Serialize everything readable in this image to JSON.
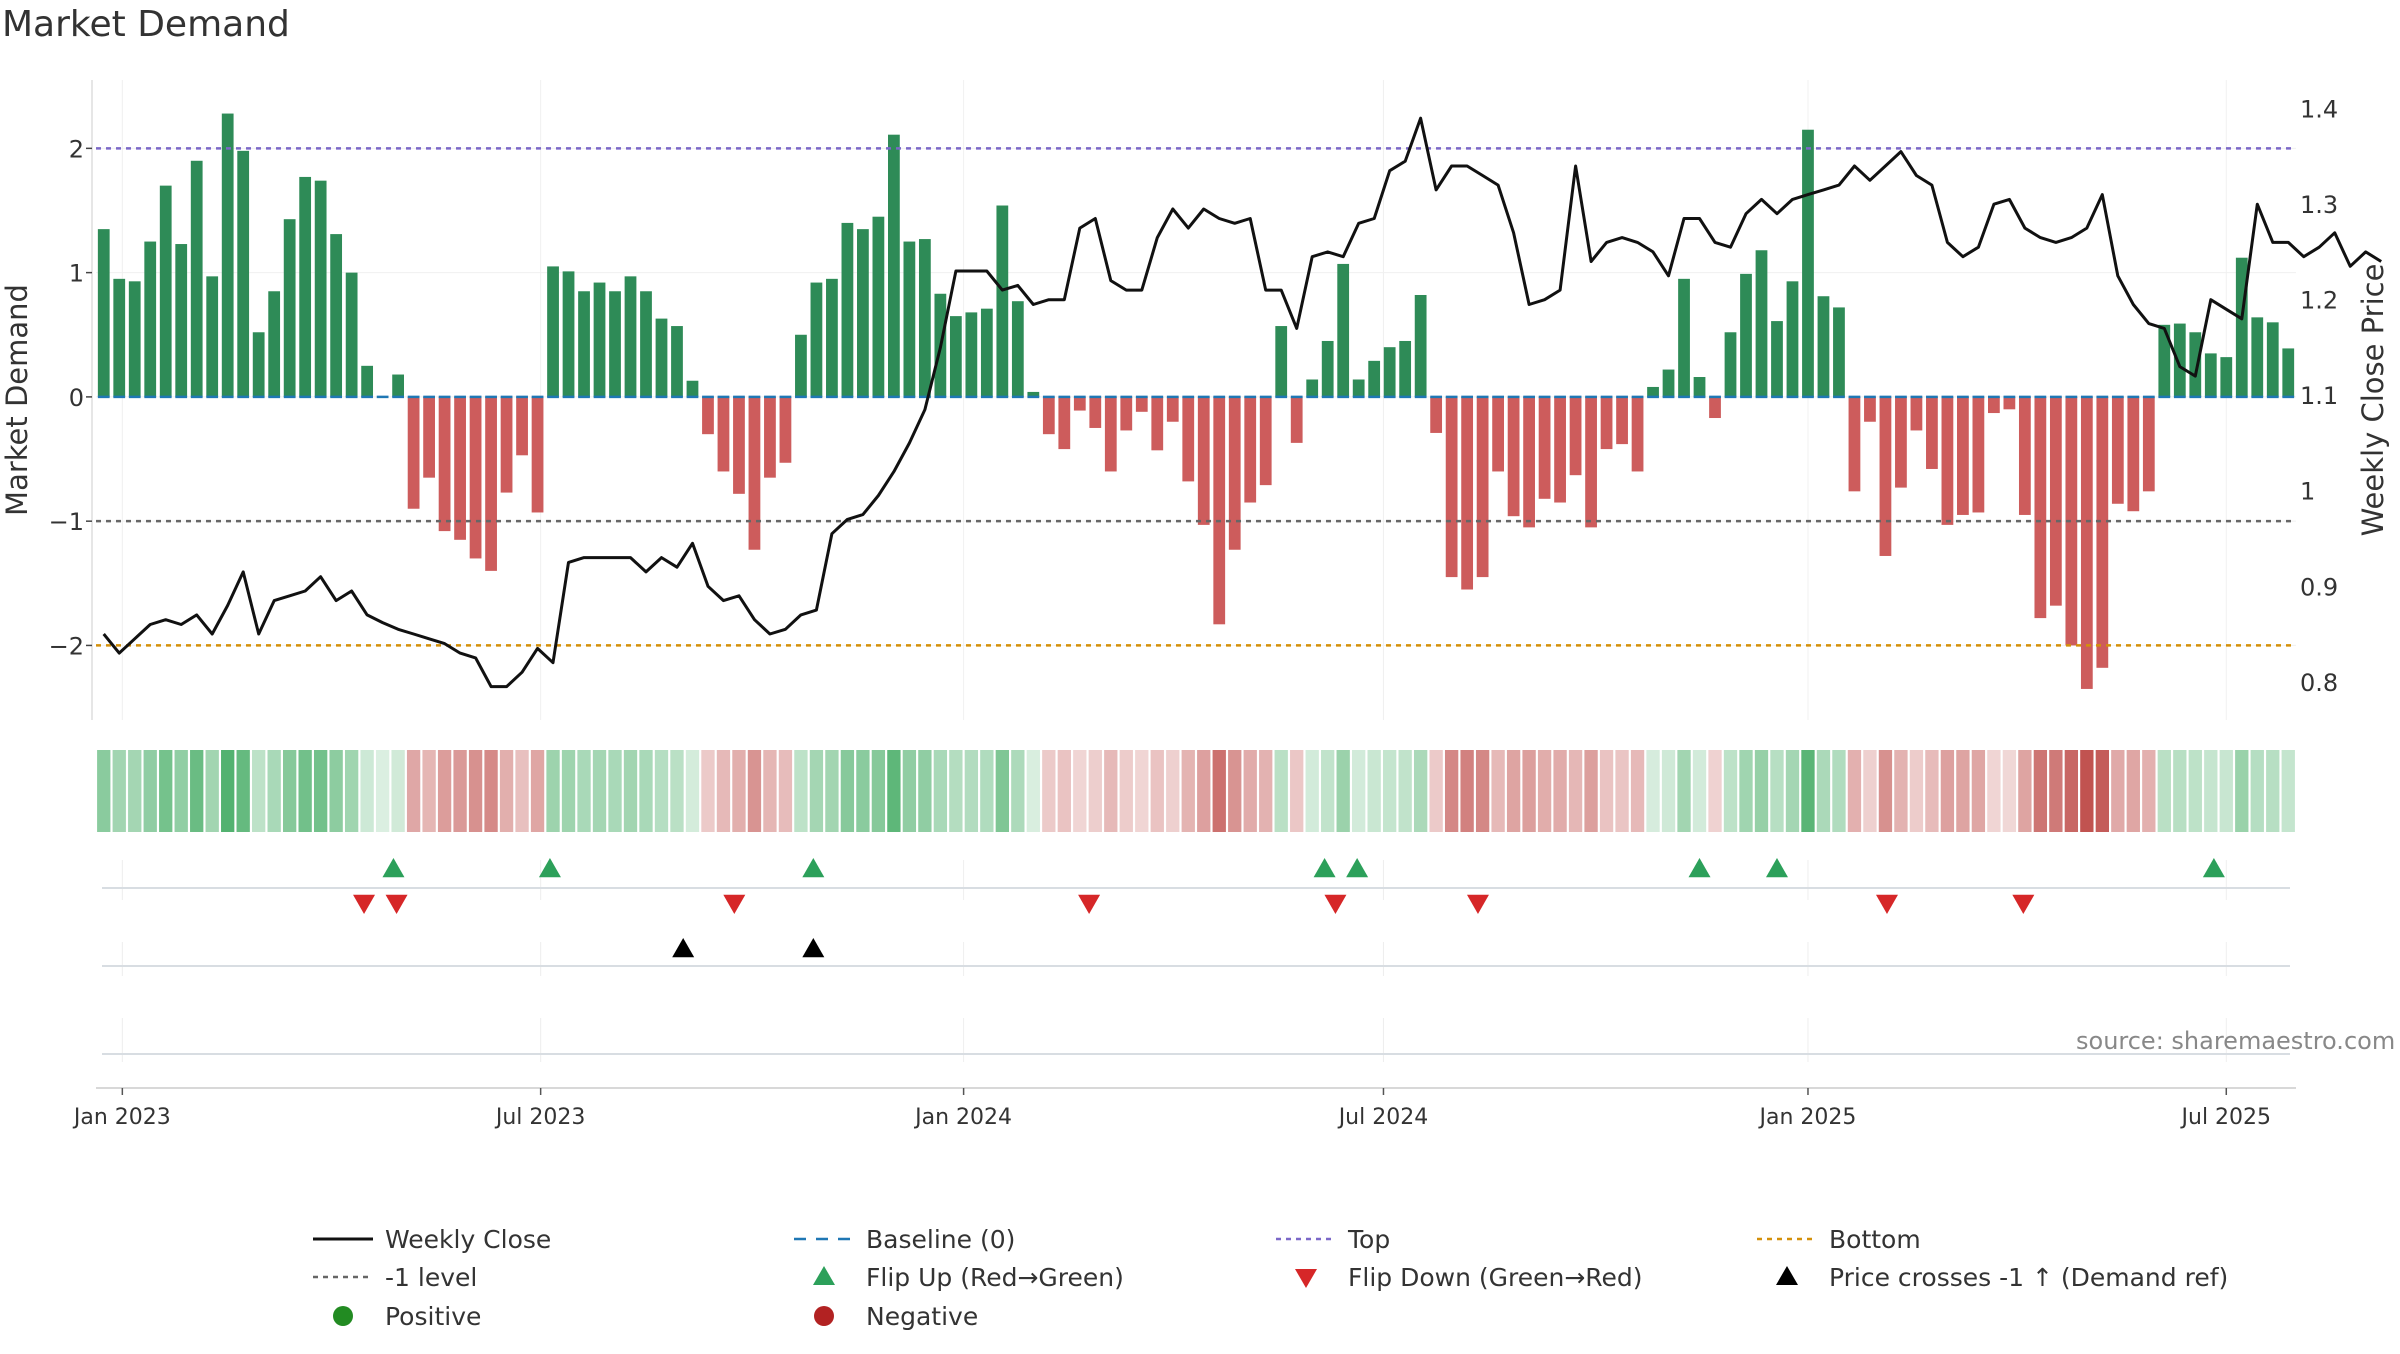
{
  "chart_data": {
    "type": "bar",
    "title": "Market Demand",
    "ylabel_left": "Market Demand",
    "ylabel_right": "Weekly Close Price",
    "ylim_left": [
      -2.6,
      2.55
    ],
    "ylim_right": [
      0.76,
      1.43
    ],
    "yticks_left": [
      2,
      1,
      0,
      -1,
      -2
    ],
    "ytick_labels_left": [
      "2",
      "1",
      "0",
      "−1",
      "−2"
    ],
    "yticks_right": [
      1.4,
      1.3,
      1.2,
      1.1,
      1.0,
      0.9,
      0.8
    ],
    "ytick_labels_right": [
      "1.4",
      "1.3",
      "1.2",
      "1.1",
      "1",
      "0.9",
      "0.8"
    ],
    "xtick_labels": [
      "Jan 2023",
      "Jul 2023",
      "Jan 2024",
      "Jul 2024",
      "Jan 2025",
      "Jul 2025"
    ],
    "xtick_index": [
      1.2,
      28.2,
      55.5,
      82.6,
      110.0,
      137.0
    ],
    "reference_lines": [
      {
        "name": "Top",
        "value": 2,
        "color": "#7b68c8"
      },
      {
        "name": "-1 level",
        "value": -1,
        "color": "#666666"
      },
      {
        "name": "Bottom",
        "value": -2,
        "color": "#d4900a"
      }
    ],
    "source_text": "source: sharemaestro.com",
    "demand": [
      1.35,
      0.95,
      0.93,
      1.25,
      1.7,
      1.23,
      1.9,
      0.97,
      2.28,
      1.98,
      0.52,
      0.85,
      1.43,
      1.77,
      1.74,
      1.31,
      1.0,
      0.25,
      0,
      0.18,
      -0.9,
      -0.65,
      -1.08,
      -1.15,
      -1.3,
      -1.4,
      -0.77,
      -0.47,
      -0.93,
      1.05,
      1.01,
      0.85,
      0.92,
      0.85,
      0.97,
      0.85,
      0.63,
      0.57,
      0.13,
      -0.3,
      -0.6,
      -0.78,
      -1.23,
      -0.65,
      -0.53,
      0.5,
      0.92,
      0.95,
      1.4,
      1.35,
      1.45,
      2.11,
      1.25,
      1.27,
      0.83,
      0.65,
      0.68,
      0.71,
      1.54,
      0.77,
      0.04,
      -0.3,
      -0.42,
      -0.11,
      -0.25,
      -0.6,
      -0.27,
      -0.12,
      -0.43,
      -0.2,
      -0.68,
      -1.03,
      -1.83,
      -1.23,
      -0.85,
      -0.71,
      0.57,
      -0.37,
      0.14,
      0.45,
      1.07,
      0.14,
      0.29,
      0.4,
      0.45,
      0.82,
      -0.29,
      -1.45,
      -1.55,
      -1.45,
      -0.6,
      -0.96,
      -1.05,
      -0.82,
      -0.85,
      -0.63,
      -1.05,
      -0.42,
      -0.38,
      -0.6,
      0.08,
      0.22,
      0.95,
      0.16,
      -0.17,
      0.52,
      0.99,
      1.18,
      0.61,
      0.93,
      2.15,
      0.81,
      0.72,
      -0.76,
      -0.2,
      -1.28,
      -0.73,
      -0.27,
      -0.58,
      -1.03,
      -0.95,
      -0.93,
      -0.13,
      -0.1,
      -0.95,
      -1.78,
      -1.68,
      -2.0,
      -2.35,
      -2.18,
      -0.86,
      -0.92,
      -0.76,
      0.58,
      0.59,
      0.52,
      0.35,
      0.32,
      1.12,
      0.64,
      0.6,
      0.39
    ],
    "weekly_close": [
      0.85,
      0.83,
      0.845,
      0.86,
      0.865,
      0.86,
      0.87,
      0.85,
      0.88,
      0.915,
      0.85,
      0.885,
      0.89,
      0.895,
      0.91,
      0.885,
      0.895,
      0.87,
      0.862,
      0.855,
      0.85,
      0.845,
      0.84,
      0.83,
      0.825,
      0.795,
      0.795,
      0.81,
      0.835,
      0.82,
      0.925,
      0.93,
      0.93,
      0.93,
      0.93,
      0.915,
      0.93,
      0.92,
      0.945,
      0.9,
      0.885,
      0.89,
      0.865,
      0.85,
      0.855,
      0.87,
      0.875,
      0.955,
      0.97,
      0.975,
      0.995,
      1.02,
      1.05,
      1.085,
      1.15,
      1.23,
      1.23,
      1.23,
      1.21,
      1.215,
      1.195,
      1.2,
      1.2,
      1.275,
      1.285,
      1.22,
      1.21,
      1.21,
      1.265,
      1.295,
      1.275,
      1.295,
      1.285,
      1.28,
      1.285,
      1.21,
      1.21,
      1.17,
      1.245,
      1.25,
      1.245,
      1.28,
      1.285,
      1.335,
      1.345,
      1.39,
      1.315,
      1.34,
      1.34,
      1.33,
      1.32,
      1.27,
      1.195,
      1.2,
      1.21,
      1.34,
      1.24,
      1.26,
      1.265,
      1.26,
      1.25,
      1.225,
      1.285,
      1.285,
      1.26,
      1.255,
      1.29,
      1.305,
      1.29,
      1.305,
      1.31,
      1.315,
      1.32,
      1.34,
      1.325,
      1.34,
      1.355,
      1.33,
      1.32,
      1.26,
      1.245,
      1.255,
      1.3,
      1.305,
      1.275,
      1.265,
      1.26,
      1.265,
      1.275,
      1.31,
      1.225,
      1.195,
      1.175,
      1.17,
      1.13,
      1.12,
      1.2,
      1.19,
      1.18,
      1.3,
      1.26,
      1.26,
      1.245,
      1.255,
      1.27,
      1.235,
      1.25,
      1.24
    ],
    "flip_up_index": [
      18.7,
      28.8,
      45.8,
      78.8,
      80.9,
      103.0,
      108.0,
      136.2
    ],
    "flip_down_index": [
      16.8,
      18.9,
      40.7,
      63.6,
      79.5,
      88.7,
      115.1,
      123.9
    ],
    "price_cross_index": [
      37.4,
      45.8
    ],
    "legend": [
      {
        "label": "Weekly Close",
        "kind": "line-solid",
        "color": "#111111"
      },
      {
        "label": "Baseline (0)",
        "kind": "line-dashed",
        "color": "#1f77b4"
      },
      {
        "label": "Top",
        "kind": "line-dotted",
        "color": "#7b68c8"
      },
      {
        "label": "Bottom",
        "kind": "line-dotted",
        "color": "#d4900a"
      },
      {
        "label": "-1 level",
        "kind": "line-dotted",
        "color": "#666666"
      },
      {
        "label": "Flip Up (Red→Green)",
        "kind": "triangle-up",
        "color": "#2ca05a"
      },
      {
        "label": "Flip Down (Green→Red)",
        "kind": "triangle-down",
        "color": "#d62728"
      },
      {
        "label": "Price crosses -1 ↑ (Demand ref)",
        "kind": "triangle-up",
        "color": "#000000"
      },
      {
        "label": "Positive",
        "kind": "circle",
        "color": "#228b22"
      },
      {
        "label": "Negative",
        "kind": "circle",
        "color": "#b22222"
      }
    ]
  },
  "colors": {
    "positive_bar": "#2e8b57",
    "negative_bar": "#cd5c5c",
    "price_line": "#111111",
    "baseline": "#1f77b4",
    "heat_positive": "#4caf6a",
    "heat_negative": "#c0504d",
    "flip_up": "#2ca05a",
    "flip_down": "#d62728",
    "price_cross": "#000000",
    "source_text": "#888888"
  }
}
